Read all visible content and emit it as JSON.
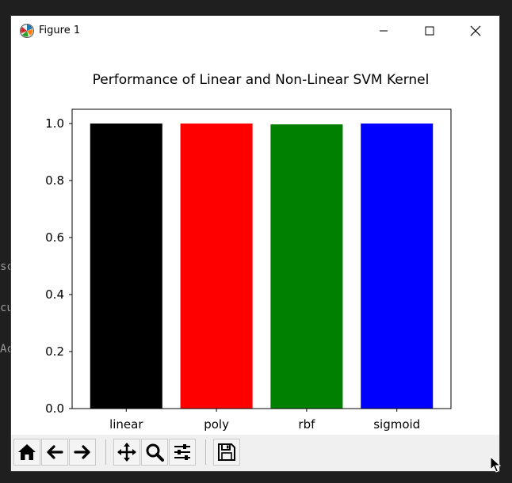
{
  "window": {
    "title": "Figure 1"
  },
  "background_text": [
    "sc",
    "cu",
    "Ac"
  ],
  "toolbar": {
    "buttons": [
      {
        "icon": "home-icon"
      },
      {
        "icon": "back-arrow-icon"
      },
      {
        "icon": "forward-arrow-icon"
      },
      {
        "icon": "pan-icon"
      },
      {
        "icon": "zoom-icon"
      },
      {
        "icon": "configure-subplots-icon"
      },
      {
        "icon": "save-icon"
      }
    ]
  },
  "chart_data": {
    "type": "bar",
    "title": "Performance of Linear and Non-Linear SVM Kernel",
    "xlabel": "",
    "ylabel": "",
    "categories": [
      "linear",
      "poly",
      "rbf",
      "sigmoid"
    ],
    "values": [
      1.0,
      1.0,
      0.997,
      1.0
    ],
    "colors": [
      "#000000",
      "#ff0000",
      "#008000",
      "#0000ff"
    ],
    "ylim": [
      0,
      1.05
    ],
    "yticks": [
      "0.0",
      "0.2",
      "0.4",
      "0.6",
      "0.8",
      "1.0"
    ],
    "grid": false
  }
}
